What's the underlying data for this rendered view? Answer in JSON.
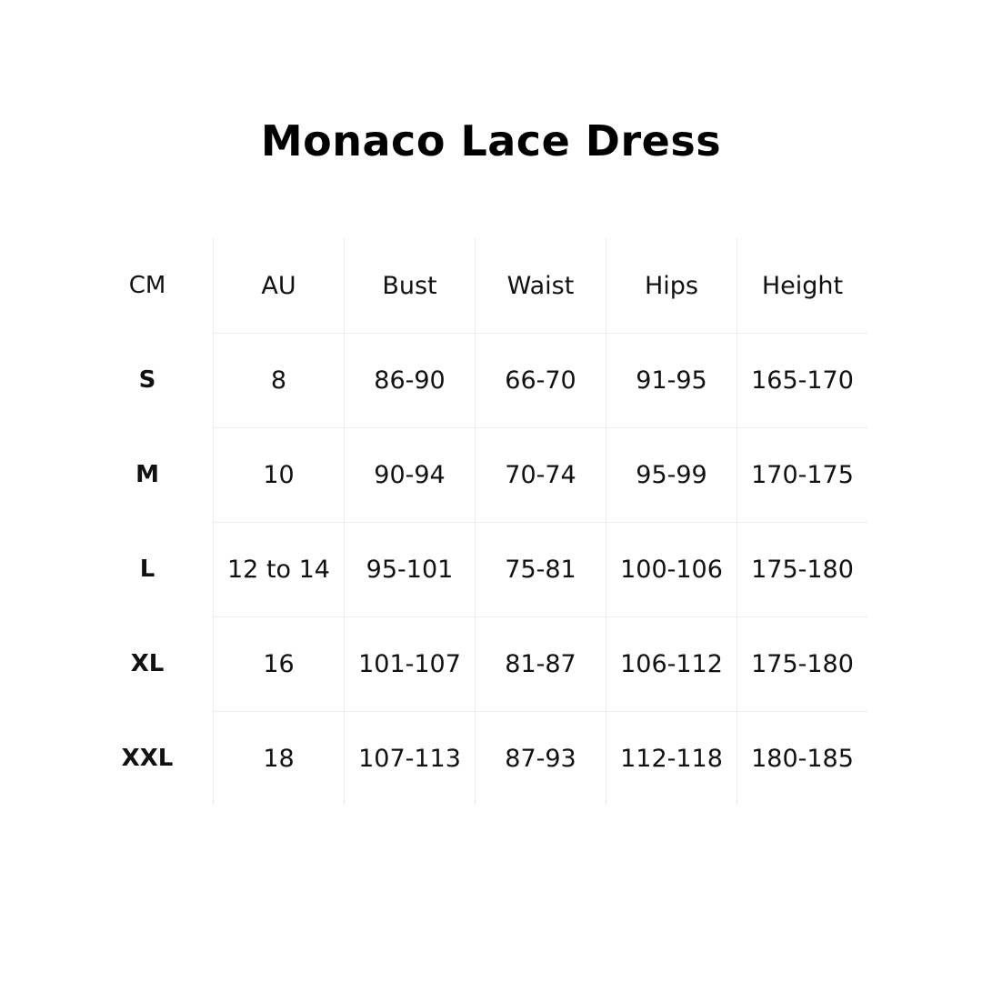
{
  "title": "Monaco Lace Dress",
  "table": {
    "headers": [
      "CM",
      "AU",
      "Bust",
      "Waist",
      "Hips",
      "Height"
    ],
    "rows": [
      [
        "S",
        "8",
        "86-90",
        "66-70",
        "91-95",
        "165-170"
      ],
      [
        "M",
        "10",
        "90-94",
        "70-74",
        "95-99",
        "170-175"
      ],
      [
        "L",
        "12 to 14",
        "95-101",
        "75-81",
        "100-106",
        "175-180"
      ],
      [
        "XL",
        "16",
        "101-107",
        "81-87",
        "106-112",
        "175-180"
      ],
      [
        "XXL",
        "18",
        "107-113",
        "87-93",
        "112-118",
        "180-185"
      ]
    ]
  },
  "colors": {
    "grid_line": "#ececec",
    "text": "#111111"
  }
}
